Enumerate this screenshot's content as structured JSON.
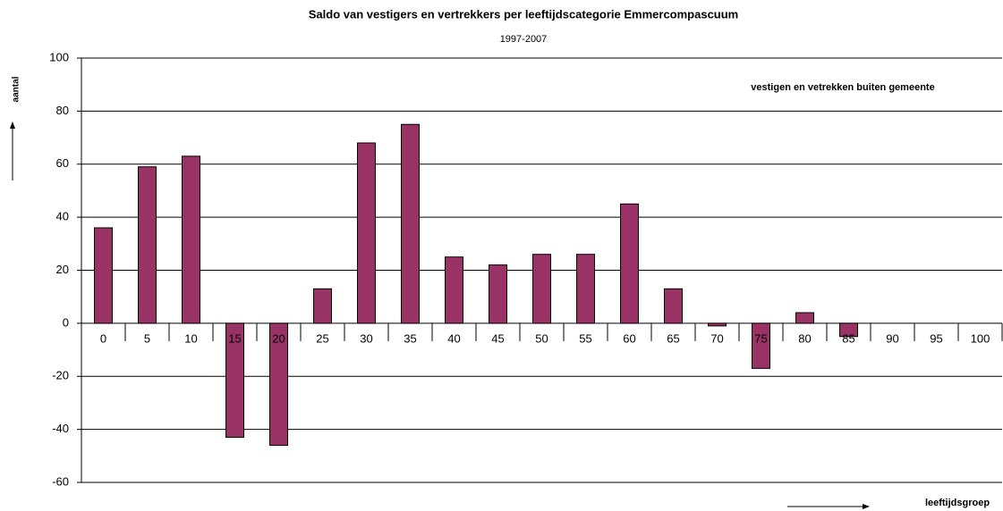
{
  "chart_data": {
    "type": "bar",
    "title": "Saldo van vestigers en vertrekkers per leeftijdscategorie Emmercompascuum",
    "subtitle": "1997-2007",
    "annotation": "vestigen en vetrekken buiten gemeente",
    "y_label": "aantal",
    "x_label": "leeftijdsgroep",
    "categories": [
      "0",
      "5",
      "10",
      "15",
      "20",
      "25",
      "30",
      "35",
      "40",
      "45",
      "50",
      "55",
      "60",
      "65",
      "70",
      "75",
      "80",
      "85",
      "90",
      "95",
      "100"
    ],
    "values": [
      36,
      59,
      63,
      -43,
      -46,
      13,
      68,
      75,
      25,
      22,
      26,
      26,
      45,
      13,
      -1,
      -17,
      4,
      -5,
      0,
      0,
      0
    ],
    "color": "#993366",
    "ylim": [
      -60,
      100
    ],
    "yticks": [
      -60,
      -40,
      -20,
      0,
      20,
      40,
      60,
      80,
      100
    ],
    "grid": true
  }
}
